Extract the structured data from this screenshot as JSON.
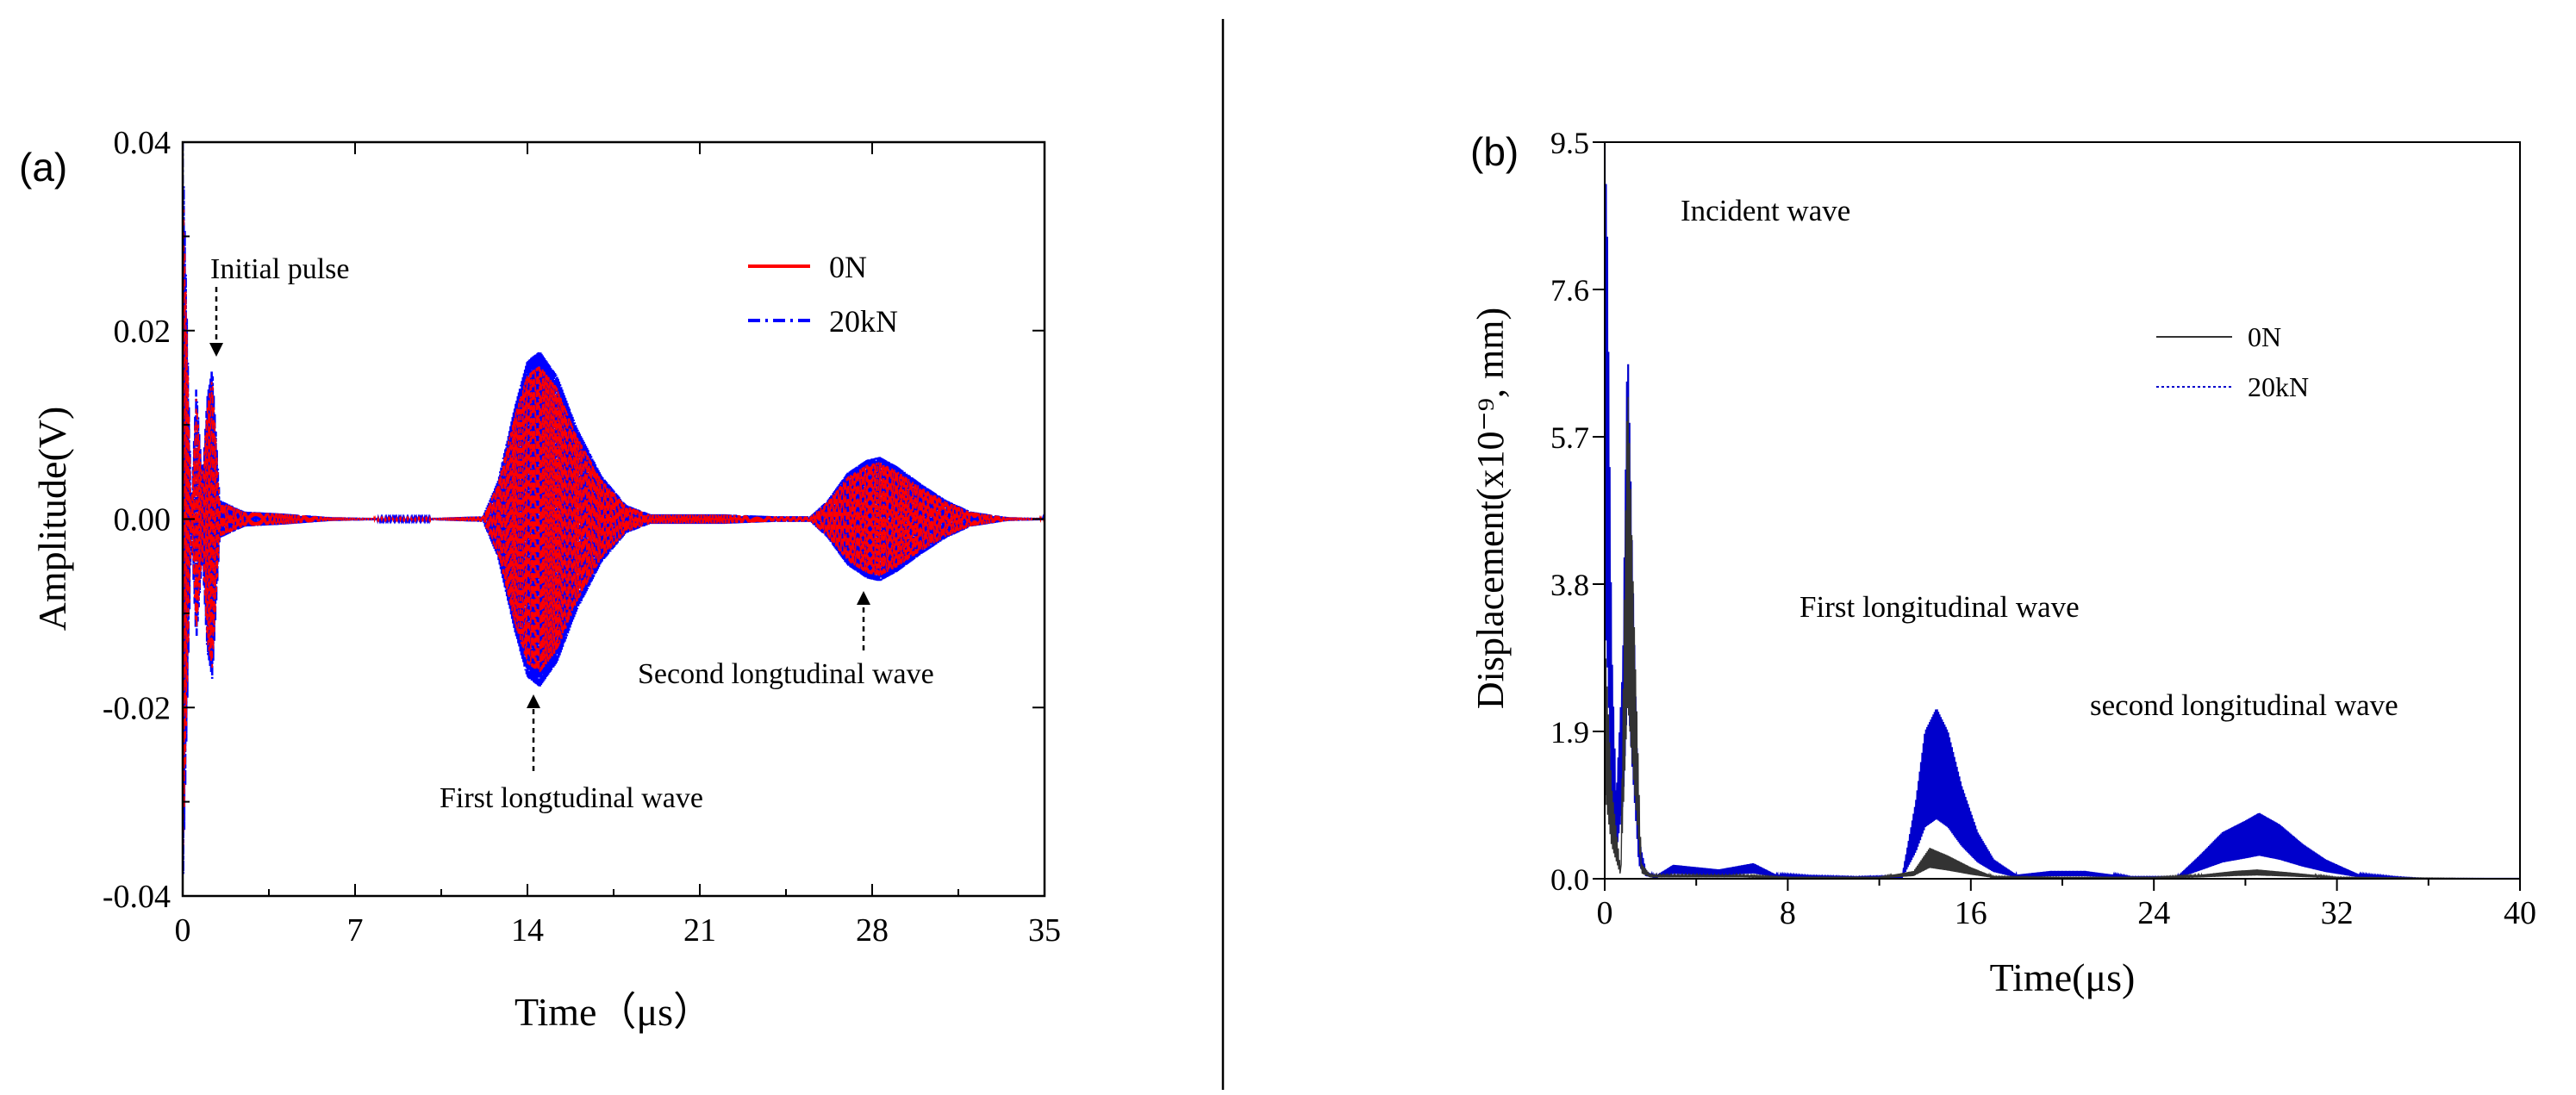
{
  "chart_data": [
    {
      "panel": "(a)",
      "type": "line",
      "xlabel": "Time（μs）",
      "ylabel": "Amplitude(V)",
      "xlim": [
        0,
        35
      ],
      "ylim": [
        -0.04,
        0.04
      ],
      "xticks": [
        0,
        7,
        14,
        21,
        28,
        35
      ],
      "xtick_labels": [
        "0",
        "7",
        "14",
        "21",
        "28",
        "35"
      ],
      "yticks": [
        -0.04,
        -0.02,
        0.0,
        0.02,
        0.04
      ],
      "ytick_labels": [
        "-0.04",
        "-0.02",
        "0.00",
        "0.02",
        "0.04"
      ],
      "legend": {
        "placement": "top-right",
        "entries": [
          "0N",
          "20kN"
        ]
      },
      "series": [
        {
          "name": "0N",
          "color": "#ff0000",
          "style": "solid",
          "envelope": {
            "x": [
              0,
              0.35,
              0.55,
              0.8,
              1.0,
              1.2,
              1.5,
              2.5,
              4,
              6,
              8,
              10,
              12.2,
              12.8,
              13.5,
              14.0,
              14.5,
              15.2,
              16.0,
              17.0,
              18.0,
              19.0,
              20.5,
              22,
              24,
              25.5,
              26.2,
              27.0,
              27.8,
              28.3,
              29.0,
              30.0,
              31.0,
              32.0,
              33.5,
              35
            ],
            "upper": [
              0.04,
              0.001,
              0.014,
              0.004,
              0.013,
              0.016,
              0.002,
              0.0008,
              0.0006,
              0.0002,
              0.0001,
              0.0001,
              0.0003,
              0.004,
              0.012,
              0.0165,
              0.0175,
              0.015,
              0.0095,
              0.0045,
              0.0015,
              0.0005,
              0.0005,
              0.0005,
              0.0003,
              0.0003,
              0.002,
              0.0048,
              0.0062,
              0.0065,
              0.0055,
              0.0036,
              0.002,
              0.0008,
              0.0002,
              0.0001
            ],
            "lower": [
              -0.04,
              -0.001,
              -0.013,
              -0.004,
              -0.014,
              -0.017,
              -0.002,
              -0.0008,
              -0.0006,
              -0.0002,
              -0.0001,
              -0.0001,
              -0.0003,
              -0.004,
              -0.012,
              -0.0165,
              -0.0175,
              -0.015,
              -0.0095,
              -0.0045,
              -0.0015,
              -0.0005,
              -0.0005,
              -0.0005,
              -0.0003,
              -0.0003,
              -0.002,
              -0.0048,
              -0.0062,
              -0.0065,
              -0.0055,
              -0.0036,
              -0.002,
              -0.0008,
              -0.0002,
              -0.0001
            ]
          }
        },
        {
          "name": "20kN",
          "color": "#0000ff",
          "style": "dash-dot",
          "envelope": {
            "x": [
              0,
              0.35,
              0.55,
              0.8,
              1.0,
              1.2,
              1.5,
              2.5,
              4,
              6,
              8,
              10,
              12.2,
              12.8,
              13.5,
              14.0,
              14.5,
              15.2,
              16.0,
              17.0,
              18.0,
              19.0,
              20.5,
              22,
              24,
              25.5,
              26.2,
              27.0,
              27.8,
              28.3,
              29.0,
              30.0,
              31.0,
              32.0,
              33.5,
              35
            ],
            "upper": [
              0.04,
              0.001,
              0.014,
              0.004,
              0.013,
              0.016,
              0.002,
              0.0008,
              0.0006,
              0.0002,
              0.0001,
              0.0001,
              0.0003,
              0.004,
              0.012,
              0.0168,
              0.0178,
              0.0152,
              0.0097,
              0.0046,
              0.0015,
              0.0005,
              0.0005,
              0.0005,
              0.0003,
              0.0003,
              0.002,
              0.0049,
              0.0063,
              0.0066,
              0.0056,
              0.0037,
              0.002,
              0.0008,
              0.0002,
              0.0001
            ],
            "lower": [
              -0.04,
              -0.001,
              -0.013,
              -0.004,
              -0.014,
              -0.017,
              -0.002,
              -0.0008,
              -0.0006,
              -0.0002,
              -0.0001,
              -0.0001,
              -0.0003,
              -0.004,
              -0.012,
              -0.0168,
              -0.0178,
              -0.0152,
              -0.0097,
              -0.0046,
              -0.0015,
              -0.0005,
              -0.0005,
              -0.0005,
              -0.0003,
              -0.0003,
              -0.002,
              -0.0049,
              -0.0063,
              -0.0066,
              -0.0056,
              -0.0037,
              -0.002,
              -0.0008,
              -0.0002,
              -0.0001
            ]
          }
        }
      ],
      "annotations": [
        {
          "text": "Initial pulse",
          "x": 1.6,
          "y": 0.0265,
          "arrow_to": [
            1.6,
            0.017
          ]
        },
        {
          "text": "First longtudinal wave",
          "x": 14.2,
          "y": -0.029,
          "arrow_to": [
            14.2,
            -0.018
          ]
        },
        {
          "text": "Second longtudinal wave",
          "x": 28.2,
          "y": -0.014,
          "arrow_to": [
            28.2,
            -0.0068
          ]
        }
      ]
    },
    {
      "panel": "(b)",
      "type": "line",
      "xlabel": "Time(μs)",
      "ylabel": "Displacement(x10⁻⁹, mm)",
      "xlim": [
        0,
        40
      ],
      "ylim": [
        0,
        9.5
      ],
      "xticks": [
        0,
        8,
        16,
        24,
        32,
        40
      ],
      "xtick_labels": [
        "0",
        "8",
        "16",
        "24",
        "32",
        "40"
      ],
      "yticks": [
        0.0,
        1.9,
        3.8,
        5.7,
        7.6,
        9.5
      ],
      "ytick_labels": [
        "0.0",
        "1.9",
        "3.8",
        "5.7",
        "7.6",
        "9.5"
      ],
      "legend": {
        "placement": "upper-right",
        "entries": [
          "0N",
          "20kN"
        ]
      },
      "series": [
        {
          "name": "0N",
          "color": "#333333",
          "style": "solid",
          "envelope": {
            "x": [
              0,
              0.3,
              0.7,
              1.0,
              1.3,
              1.6,
              2.0,
              4,
              6,
              8,
              10,
              12,
              13.5,
              14.2,
              15.0,
              16.0,
              17.0,
              20,
              24,
              26,
              27.5,
              28.5,
              30,
              32,
              40
            ],
            "upper": [
              3.2,
              1.2,
              0.1,
              6.5,
              3.2,
              0.2,
              0.05,
              0.05,
              0.05,
              0.02,
              0.02,
              0.02,
              0.1,
              0.4,
              0.3,
              0.15,
              0.03,
              0.02,
              0.02,
              0.05,
              0.1,
              0.12,
              0.08,
              0.02,
              0.0
            ]
          }
        },
        {
          "name": "20kN",
          "color": "#0000cc",
          "style": "dotted",
          "envelope": {
            "x": [
              0,
              0.1,
              0.3,
              0.5,
              0.8,
              1.0,
              1.2,
              1.5,
              1.8,
              2.2,
              3,
              4,
              5,
              6.5,
              7.5,
              9,
              11,
              13,
              13.6,
              14.0,
              14.5,
              15.0,
              15.6,
              16.3,
              17.0,
              18,
              19.5,
              21,
              23,
              25,
              26,
              27,
              28,
              28.6,
              29.5,
              30.5,
              31.5,
              33,
              34.5,
              36
            ],
            "upper": [
              9.5,
              8.5,
              3.0,
              1.0,
              2.8,
              7.0,
              4.2,
              0.5,
              0.1,
              0.03,
              0.18,
              0.15,
              0.12,
              0.2,
              0.05,
              0.03,
              0.02,
              0.03,
              1.0,
              1.9,
              2.2,
              1.9,
              1.2,
              0.6,
              0.25,
              0.05,
              0.1,
              0.1,
              0.02,
              0.02,
              0.3,
              0.6,
              0.75,
              0.85,
              0.7,
              0.45,
              0.25,
              0.05,
              0.02,
              0.0
            ]
          }
        }
      ],
      "annotations": [
        {
          "text": "Incident wave",
          "x": 3.9,
          "y": 8.8
        },
        {
          "text": "First longitudinal wave",
          "x": 9.3,
          "y": 3.5
        },
        {
          "text": "second longitudinal wave",
          "x": 22.5,
          "y": 2.2
        }
      ]
    }
  ]
}
